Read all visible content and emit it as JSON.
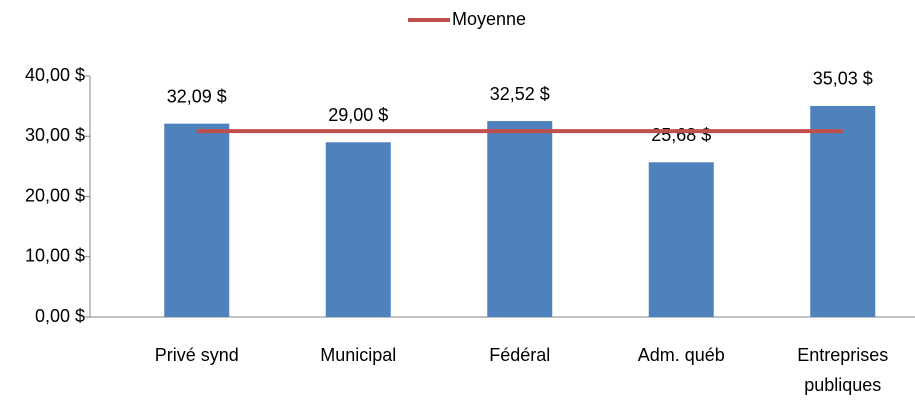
{
  "chart_data": {
    "type": "bar",
    "categories": [
      "Privé synd",
      "Municipal",
      "Fédéral",
      "Adm. québ",
      "Entreprises publiques"
    ],
    "series": [
      {
        "type": "bar",
        "color": "#4f81bd",
        "values": [
          32.09,
          29.0,
          32.52,
          25.68,
          35.03
        ],
        "value_labels": [
          "32,09 $",
          "29,00 $",
          "32,52 $",
          "25,68 $",
          "35,03 $"
        ]
      },
      {
        "type": "line",
        "name": "Moyenne",
        "color": "#c0504d",
        "values": [
          30.86,
          30.86,
          30.86,
          30.86,
          30.86
        ]
      }
    ],
    "ylim": [
      0,
      40
    ],
    "yticks": [
      {
        "value": 0,
        "label": "0,00 $"
      },
      {
        "value": 10,
        "label": "10,00 $"
      },
      {
        "value": 20,
        "label": "20,00 $"
      },
      {
        "value": 30,
        "label": "30,00 $"
      },
      {
        "value": 40,
        "label": "40,00 $"
      }
    ],
    "grid": false,
    "legend": "top"
  }
}
